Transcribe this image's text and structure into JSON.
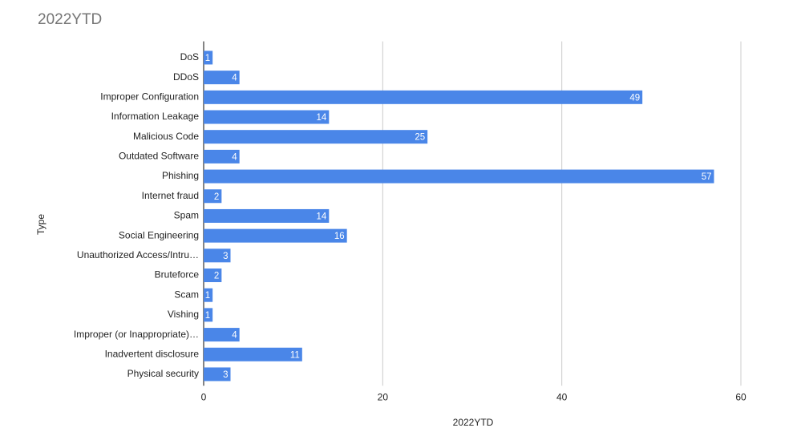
{
  "chart_data": {
    "type": "bar",
    "orientation": "horizontal",
    "title": "2022YTD",
    "x_label": "2022YTD",
    "y_label": "Type",
    "categories": [
      "DoS",
      "DDoS",
      "Improper Configuration",
      "Information Leakage",
      "Malicious Code",
      "Outdated Software",
      "Phishing",
      "Internet fraud",
      "Spam",
      "Social Engineering",
      "Unauthorized Access/Intru…",
      "Bruteforce",
      "Scam",
      "Vishing",
      "Improper (or Inappropriate)…",
      "Inadvertent disclosure",
      "Physical security"
    ],
    "values": [
      1,
      4,
      49,
      14,
      25,
      4,
      57,
      2,
      14,
      16,
      3,
      2,
      1,
      1,
      4,
      11,
      3
    ],
    "color": "#4a86e8",
    "xlim": [
      0,
      60
    ],
    "xticks": [
      0,
      20,
      40,
      60
    ],
    "grid": true
  }
}
